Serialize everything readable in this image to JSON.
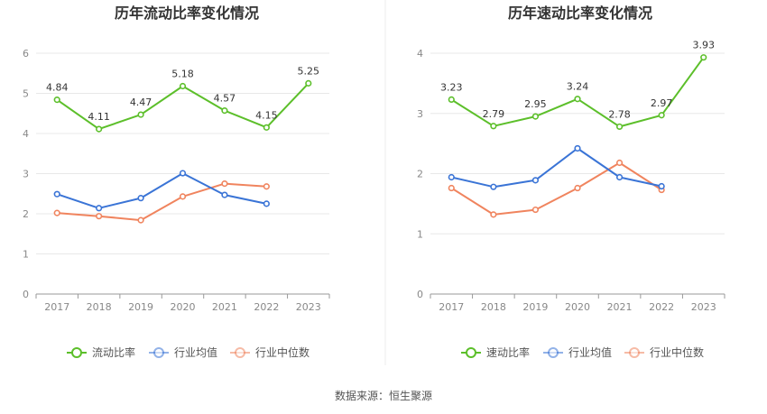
{
  "colors": {
    "primary": "#5cbf2a",
    "average": "#3a74d6",
    "median": "#f0845e"
  },
  "source_label": "数据来源：恒生聚源",
  "chart_data": [
    {
      "type": "line",
      "title": "历年流动比率变化情况",
      "x": [
        "2017",
        "2018",
        "2019",
        "2020",
        "2021",
        "2022",
        "2023"
      ],
      "ylim": [
        0,
        6
      ],
      "yticks": [
        "0",
        "1",
        "2",
        "3",
        "4",
        "5",
        "6"
      ],
      "grid": true,
      "legend_position": "bottom",
      "series": [
        {
          "name": "流动比率",
          "color": "#5cbf2a",
          "values": [
            4.84,
            4.11,
            4.47,
            5.18,
            4.57,
            4.15,
            5.25
          ],
          "labels": [
            "4.84",
            "4.11",
            "4.47",
            "5.18",
            "4.57",
            "4.15",
            "5.25"
          ]
        },
        {
          "name": "行业均值",
          "color": "#3a74d6",
          "values": [
            2.49,
            2.14,
            2.39,
            3.01,
            2.47,
            2.25,
            null
          ]
        },
        {
          "name": "行业中位数",
          "color": "#f0845e",
          "values": [
            2.02,
            1.94,
            1.84,
            2.43,
            2.75,
            2.68,
            null
          ]
        }
      ]
    },
    {
      "type": "line",
      "title": "历年速动比率变化情况",
      "x": [
        "2017",
        "2018",
        "2019",
        "2020",
        "2021",
        "2022",
        "2023"
      ],
      "ylim": [
        0,
        4
      ],
      "yticks": [
        "0",
        "1",
        "2",
        "3",
        "4"
      ],
      "grid": true,
      "legend_position": "bottom",
      "series": [
        {
          "name": "速动比率",
          "color": "#5cbf2a",
          "values": [
            3.23,
            2.79,
            2.95,
            3.24,
            2.78,
            2.97,
            3.93
          ],
          "labels": [
            "3.23",
            "2.79",
            "2.95",
            "3.24",
            "2.78",
            "2.97",
            "3.93"
          ]
        },
        {
          "name": "行业均值",
          "color": "#3a74d6",
          "values": [
            1.94,
            1.78,
            1.89,
            2.42,
            1.94,
            1.79,
            null
          ]
        },
        {
          "name": "行业中位数",
          "color": "#f0845e",
          "values": [
            1.76,
            1.32,
            1.4,
            1.76,
            2.18,
            1.73,
            null
          ]
        }
      ]
    }
  ]
}
